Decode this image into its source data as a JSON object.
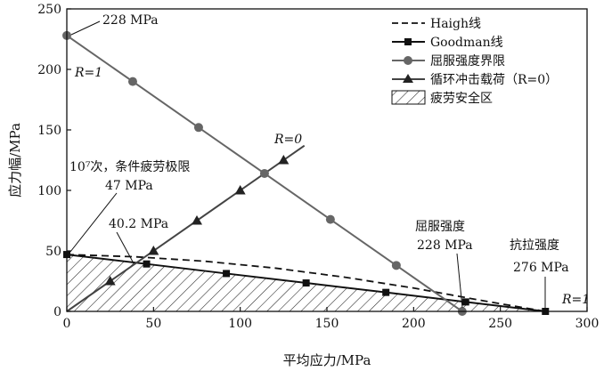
{
  "chart_data": {
    "type": "line",
    "xlabel": "平均应力/MPa",
    "ylabel": "应力幅/MPa",
    "xlim": [
      0,
      300
    ],
    "ylim": [
      0,
      250
    ],
    "xticks": [
      0,
      50,
      100,
      150,
      200,
      250,
      300
    ],
    "yticks": [
      0,
      50,
      100,
      150,
      200,
      250
    ],
    "grid": false,
    "legend_position": "top-right",
    "legend": {
      "haigh": "Haigh线",
      "goodman": "Goodman线",
      "yield": "屈服强度界限",
      "impact": "循环冲击载荷（R=0）",
      "safe": "疲劳安全区"
    },
    "series": [
      {
        "id": "haigh",
        "name": "Haigh线",
        "style": "dashed",
        "color": "#111111",
        "x": [
          0,
          40,
          80,
          120,
          160,
          200,
          240,
          276
        ],
        "y": [
          47,
          45.1,
          41.4,
          35.8,
          28.3,
          19.3,
          8.8,
          0
        ]
      },
      {
        "id": "goodman",
        "name": "Goodman线",
        "style": "solid",
        "marker": "square",
        "color": "#111111",
        "x": [
          0,
          46,
          92,
          138,
          184,
          230,
          276
        ],
        "y": [
          47,
          39.2,
          31.3,
          23.5,
          15.7,
          7.8,
          0
        ]
      },
      {
        "id": "yield",
        "name": "屈服强度界限",
        "style": "solid",
        "marker": "circle",
        "color": "#666666",
        "x": [
          0,
          38,
          76,
          114,
          152,
          190,
          228
        ],
        "y": [
          228,
          190,
          152,
          114,
          76,
          38,
          0
        ]
      },
      {
        "id": "impact",
        "name": "循环冲击载荷（R=0）",
        "style": "solid",
        "marker": "triangle",
        "color": "#444444",
        "x": [
          0,
          137
        ],
        "y": [
          0,
          137
        ],
        "marker_x": [
          25,
          50,
          75,
          100,
          125
        ],
        "marker_y": [
          25,
          50,
          75,
          100,
          125
        ]
      }
    ],
    "safe_zone": {
      "name": "疲劳安全区",
      "x": [
        0,
        46,
        92,
        138,
        184,
        230,
        276
      ],
      "y": [
        47,
        39.2,
        31.3,
        23.5,
        15.7,
        7.8,
        0
      ]
    },
    "annotations": [
      {
        "id": "a228",
        "text": "228 MPa"
      },
      {
        "id": "aR1",
        "text": "R=1"
      },
      {
        "id": "aR0",
        "text": "R=0"
      },
      {
        "id": "a10",
        "text": "10⁷次，条件疲劳极限"
      },
      {
        "id": "a47",
        "text": "47 MPa"
      },
      {
        "id": "a402",
        "text": "40.2 MPa"
      },
      {
        "id": "ayield",
        "text": "屈服强度"
      },
      {
        "id": "ayield228",
        "text": "228 MPa"
      },
      {
        "id": "atensile",
        "text": "抗拉强度"
      },
      {
        "id": "a276",
        "text": "276 MPa"
      },
      {
        "id": "aR1b",
        "text": "R=1"
      }
    ]
  }
}
